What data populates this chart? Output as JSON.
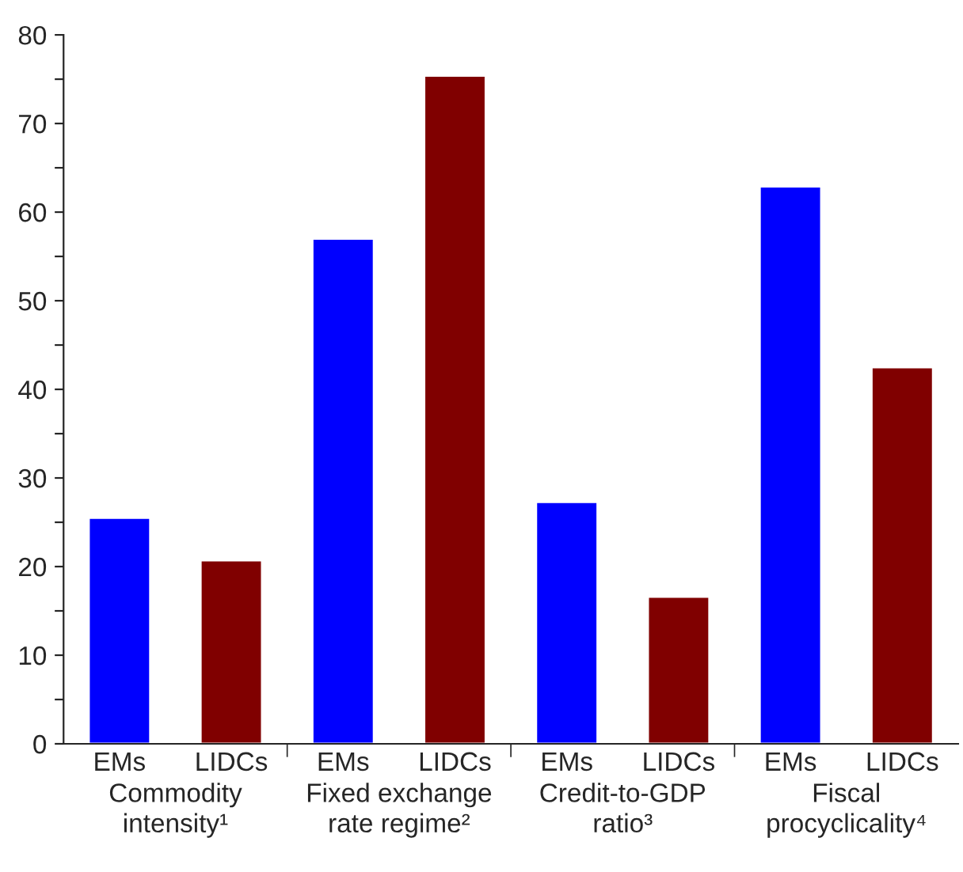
{
  "chart_data": {
    "type": "bar",
    "categories": [
      "EMs",
      "LIDCs",
      "EMs",
      "LIDCs",
      "EMs",
      "LIDCs",
      "EMs",
      "LIDCs"
    ],
    "values": [
      25.5,
      20.7,
      57.0,
      75.4,
      27.3,
      16.6,
      62.9,
      42.5
    ],
    "colors": [
      "#0000ff",
      "#800000",
      "#0000ff",
      "#800000",
      "#0000ff",
      "#800000",
      "#0000ff",
      "#800000"
    ],
    "ylim": [
      0,
      80
    ],
    "yticks": [
      0,
      {
        "value": 5,
        "label": null
      },
      10,
      {
        "value": 15,
        "label": null
      },
      20,
      {
        "value": 25,
        "label": null
      },
      30,
      {
        "value": 35,
        "label": null
      },
      40,
      {
        "value": 45,
        "label": null
      },
      50,
      {
        "value": 55,
        "label": null
      },
      60,
      {
        "value": 65,
        "label": null
      },
      70,
      {
        "value": 75,
        "label": null
      },
      80
    ],
    "annotations": [
      "Commodity\nintensity¹",
      "Fixed exchange\nrate regime²",
      "Credit-to-GDP\nratio³",
      "Fiscal\nprocyclicality⁴"
    ],
    "grid": false,
    "legend": false
  }
}
